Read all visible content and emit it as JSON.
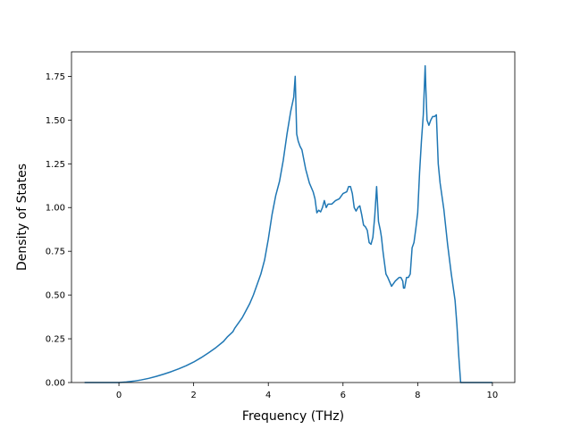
{
  "chart_data": {
    "type": "line",
    "title": "",
    "xlabel": "Frequency (THz)",
    "ylabel": "Density of States",
    "xlim": [
      -1.27,
      10.6
    ],
    "ylim": [
      0,
      1.89
    ],
    "xticks": [
      0,
      2,
      4,
      6,
      8,
      10
    ],
    "xtick_labels": [
      "0",
      "2",
      "4",
      "6",
      "8",
      "10"
    ],
    "yticks": [
      0,
      0.25,
      0.5,
      0.75,
      1.0,
      1.25,
      1.5,
      1.75
    ],
    "ytick_labels": [
      "0.00",
      "0.25",
      "0.50",
      "0.75",
      "1.00",
      "1.25",
      "1.50",
      "1.75"
    ],
    "grid": false,
    "line_color": "#1f77b4",
    "series": [
      {
        "x": [
          -0.92,
          -0.5,
          0,
          0.2,
          0.4,
          0.6,
          0.8,
          1.0,
          1.2,
          1.4,
          1.6,
          1.8,
          2.0,
          2.2,
          2.4,
          2.6,
          2.8,
          2.9,
          3.0,
          3.05,
          3.1,
          3.2,
          3.3,
          3.4,
          3.5,
          3.6,
          3.7,
          3.8,
          3.9,
          4.0,
          4.1,
          4.2,
          4.3,
          4.4,
          4.5,
          4.6,
          4.68,
          4.72,
          4.76,
          4.8,
          4.85,
          4.9,
          5.0,
          5.1,
          5.2,
          5.25,
          5.3,
          5.35,
          5.4,
          5.45,
          5.5,
          5.55,
          5.6,
          5.7,
          5.8,
          5.9,
          6.0,
          6.1,
          6.15,
          6.2,
          6.25,
          6.3,
          6.35,
          6.4,
          6.45,
          6.5,
          6.55,
          6.6,
          6.65,
          6.7,
          6.75,
          6.8,
          6.85,
          6.9,
          6.95,
          7.0,
          7.03,
          7.07,
          7.1,
          7.15,
          7.2,
          7.3,
          7.4,
          7.5,
          7.55,
          7.6,
          7.62,
          7.65,
          7.7,
          7.75,
          7.8,
          7.85,
          7.9,
          7.95,
          8.0,
          8.05,
          8.1,
          8.15,
          8.2,
          8.22,
          8.25,
          8.3,
          8.35,
          8.4,
          8.45,
          8.5,
          8.55,
          8.6,
          8.7,
          8.8,
          8.9,
          9.0,
          9.05,
          9.1,
          9.15,
          9.5,
          10.0
        ],
        "y": [
          0.0,
          0.0,
          0.0,
          0.003,
          0.008,
          0.015,
          0.024,
          0.035,
          0.048,
          0.062,
          0.078,
          0.096,
          0.117,
          0.142,
          0.17,
          0.2,
          0.235,
          0.26,
          0.28,
          0.29,
          0.31,
          0.34,
          0.37,
          0.41,
          0.45,
          0.5,
          0.56,
          0.62,
          0.7,
          0.82,
          0.96,
          1.07,
          1.15,
          1.27,
          1.42,
          1.55,
          1.63,
          1.75,
          1.42,
          1.38,
          1.35,
          1.33,
          1.22,
          1.14,
          1.09,
          1.05,
          0.97,
          0.985,
          0.975,
          1.0,
          1.04,
          1.0,
          1.02,
          1.02,
          1.04,
          1.05,
          1.08,
          1.09,
          1.12,
          1.12,
          1.08,
          1.0,
          0.98,
          1.0,
          1.01,
          0.96,
          0.9,
          0.89,
          0.87,
          0.8,
          0.79,
          0.83,
          0.95,
          1.12,
          0.92,
          0.87,
          0.83,
          0.75,
          0.7,
          0.62,
          0.6,
          0.55,
          0.58,
          0.6,
          0.6,
          0.58,
          0.54,
          0.54,
          0.6,
          0.6,
          0.62,
          0.77,
          0.8,
          0.88,
          0.97,
          1.2,
          1.38,
          1.53,
          1.81,
          1.67,
          1.5,
          1.47,
          1.5,
          1.52,
          1.52,
          1.53,
          1.25,
          1.14,
          0.99,
          0.79,
          0.62,
          0.47,
          0.33,
          0.15,
          0.0,
          0.0,
          0.0
        ]
      }
    ]
  }
}
